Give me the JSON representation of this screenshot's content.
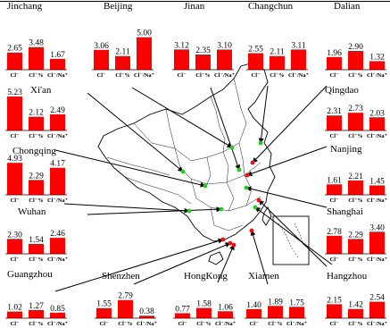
{
  "chart_data": {
    "type": "bar",
    "categories": [
      "Cl⁻",
      "Cl⁻%",
      "Cl⁻/Na⁺"
    ],
    "bar_color": "#ff0000",
    "cities": [
      {
        "name": "Jinchang",
        "values": [
          2.65,
          3.48,
          1.67
        ],
        "labels": [
          "2.65",
          "3.48",
          "1.67"
        ]
      },
      {
        "name": "Beijing",
        "values": [
          3.06,
          2.11,
          5.0
        ],
        "labels": [
          "3.06",
          "2.11",
          "5.00"
        ]
      },
      {
        "name": "Jinan",
        "values": [
          3.12,
          2.35,
          3.1
        ],
        "labels": [
          "3.12",
          "2.35",
          "3.10"
        ]
      },
      {
        "name": "Changchun",
        "values": [
          2.55,
          2.11,
          3.11
        ],
        "labels": [
          "2.55",
          "2.11",
          "3.11"
        ]
      },
      {
        "name": "Dalian",
        "values": [
          1.96,
          2.9,
          1.32
        ],
        "labels": [
          "1.96",
          "2.90",
          "1.32"
        ]
      },
      {
        "name": "Xi'an",
        "values": [
          5.23,
          2.12,
          2.49
        ],
        "labels": [
          "5.23",
          "2.12",
          "2.49"
        ]
      },
      {
        "name": "Qingdao",
        "values": [
          2.31,
          2.73,
          2.03
        ],
        "labels": [
          "2.31",
          "2.73",
          "2.03"
        ]
      },
      {
        "name": "Chongqing",
        "values": [
          4.93,
          2.29,
          4.17
        ],
        "labels": [
          "4.93",
          "2.29",
          "4.17"
        ]
      },
      {
        "name": "Nanjing",
        "values": [
          1.61,
          2.21,
          1.45
        ],
        "labels": [
          "1.61",
          "2.21",
          "1.45"
        ]
      },
      {
        "name": "Wuhan",
        "values": [
          2.3,
          1.54,
          2.46
        ],
        "labels": [
          "2.30",
          "1.54",
          "2.46"
        ]
      },
      {
        "name": "Shanghai",
        "values": [
          2.78,
          2.29,
          3.4
        ],
        "labels": [
          "2.78",
          "2.29",
          "3.40"
        ]
      },
      {
        "name": "Guangzhou",
        "values": [
          1.02,
          1.27,
          0.85
        ],
        "labels": [
          "1.02",
          "1.27",
          "0.85"
        ]
      },
      {
        "name": "Shenzhen",
        "values": [
          1.55,
          2.79,
          0.38
        ],
        "labels": [
          "1.55",
          "2.79",
          "0.38"
        ]
      },
      {
        "name": "HongKong",
        "values": [
          0.77,
          1.58,
          1.06
        ],
        "labels": [
          "0.77",
          "1.58",
          "1.06"
        ]
      },
      {
        "name": "Xiamen",
        "values": [
          1.4,
          1.89,
          1.75
        ],
        "labels": [
          "1.40",
          "1.89",
          "1.75"
        ]
      },
      {
        "name": "Hangzhou",
        "values": [
          2.15,
          1.42,
          2.54
        ],
        "labels": [
          "2.15",
          "1.42",
          "2.54"
        ]
      }
    ]
  }
}
